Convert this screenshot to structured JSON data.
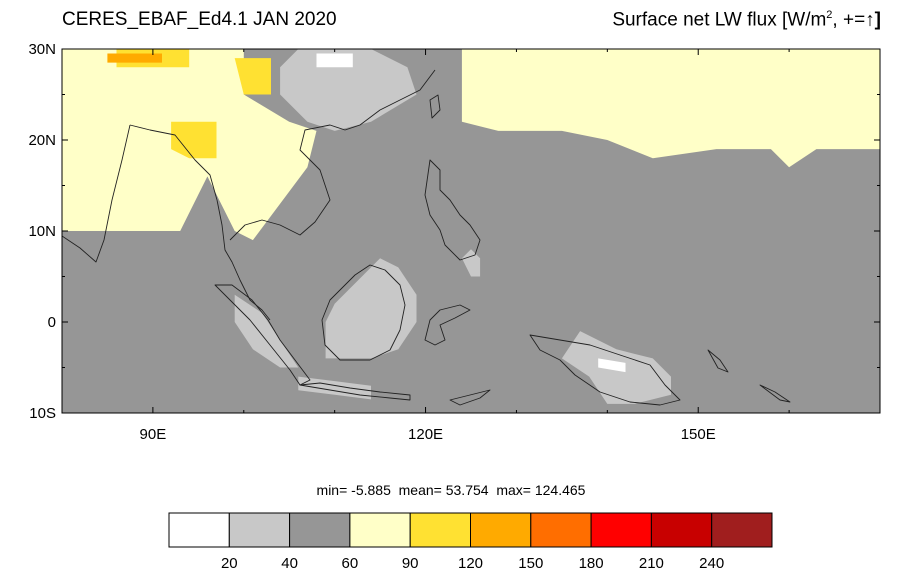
{
  "title_left": "CERES_EBAF_Ed4.1 JAN 2020",
  "title_right": {
    "prefix": "Surface net LW flux [W/m",
    "sup": "2",
    "suffix": ", +=",
    "arrow": "↑",
    "close": "]"
  },
  "stats": {
    "min_label": "min=",
    "min_value": "-5.885",
    "mean_label": "mean=",
    "mean_value": "53.754",
    "max_label": "max=",
    "max_value": "124.465"
  },
  "map": {
    "lon_range": [
      80,
      170
    ],
    "lat_range": [
      -10,
      30
    ],
    "lat_ticks": [
      {
        "value": 30,
        "label": "30N"
      },
      {
        "value": 20,
        "label": "20N"
      },
      {
        "value": 10,
        "label": "10N"
      },
      {
        "value": 0,
        "label": "0"
      },
      {
        "value": -10,
        "label": "10S"
      }
    ],
    "lon_ticks": [
      {
        "value": 90,
        "label": "90E"
      },
      {
        "value": 120,
        "label": "120E"
      },
      {
        "value": 150,
        "label": "150E"
      }
    ],
    "background_class": "40-60"
  },
  "colorbar": {
    "colors": [
      "#ffffff",
      "#c8c8c8",
      "#969696",
      "#ffffc8",
      "#ffe132",
      "#ffaa00",
      "#ff6e00",
      "#ff0000",
      "#c80000",
      "#a01e1e"
    ],
    "labels": [
      "20",
      "40",
      "60",
      "90",
      "120",
      "150",
      "180",
      "210",
      "240"
    ]
  },
  "chart_data": {
    "type": "heatmap",
    "title": "CERES_EBAF_Ed4.1 JAN 2020",
    "variable": "Surface net LW flux [W/m2, +=↑]",
    "xlim": [
      80,
      170
    ],
    "ylim": [
      -10,
      30
    ],
    "levels": [
      20,
      40,
      60,
      90,
      120,
      150,
      180,
      210,
      240
    ],
    "min": -5.885,
    "mean": 53.754,
    "max": 124.465,
    "regions": [
      {
        "class": "60-90",
        "desc": "Indian subcontinent / Indochina / South China",
        "poly": [
          [
            80,
            30
          ],
          [
            100,
            30
          ],
          [
            100,
            25
          ],
          [
            105,
            22
          ],
          [
            108,
            21
          ],
          [
            107,
            17
          ],
          [
            104,
            13
          ],
          [
            101,
            9
          ],
          [
            99,
            10
          ],
          [
            96,
            16
          ],
          [
            93,
            10
          ],
          [
            80,
            10
          ]
        ]
      },
      {
        "class": "60-90",
        "desc": "subtropical western Pacific",
        "poly": [
          [
            124,
            30
          ],
          [
            170,
            30
          ],
          [
            170,
            19
          ],
          [
            163,
            19
          ],
          [
            160,
            17
          ],
          [
            158,
            19
          ],
          [
            152,
            19
          ],
          [
            145,
            18
          ],
          [
            140,
            20
          ],
          [
            135,
            21
          ],
          [
            128,
            21
          ],
          [
            124,
            22
          ]
        ]
      },
      {
        "class": "90-120",
        "desc": "northern Myanmar",
        "poly": [
          [
            92,
            22
          ],
          [
            97,
            22
          ],
          [
            97,
            18
          ],
          [
            94,
            18
          ],
          [
            92,
            19
          ]
        ]
      },
      {
        "class": "90-120",
        "desc": "Yunnan",
        "poly": [
          [
            99,
            29
          ],
          [
            103,
            29
          ],
          [
            103,
            25
          ],
          [
            100,
            25
          ]
        ]
      },
      {
        "class": "90-120",
        "desc": "Tibet edge",
        "poly": [
          [
            86,
            30
          ],
          [
            94,
            30
          ],
          [
            94,
            28
          ],
          [
            86,
            28
          ]
        ]
      },
      {
        "class": "120-150",
        "desc": "Himalaya",
        "poly": [
          [
            85,
            29.5
          ],
          [
            91,
            29.5
          ],
          [
            91,
            28.5
          ],
          [
            85,
            28.5
          ]
        ]
      },
      {
        "class": "20-40",
        "desc": "South China hills",
        "poly": [
          [
            106,
            30
          ],
          [
            114,
            30
          ],
          [
            118,
            28
          ],
          [
            119,
            25
          ],
          [
            114,
            22
          ],
          [
            110,
            21
          ],
          [
            107,
            22
          ],
          [
            104,
            25
          ],
          [
            104,
            28
          ]
        ]
      },
      {
        "class": "20-40",
        "desc": "Borneo",
        "poly": [
          [
            109,
            -4
          ],
          [
            114,
            -4
          ],
          [
            117,
            -3
          ],
          [
            119,
            0
          ],
          [
            119,
            3
          ],
          [
            117,
            6
          ],
          [
            115,
            7
          ],
          [
            113,
            5
          ],
          [
            110,
            2
          ],
          [
            109,
            0
          ]
        ]
      },
      {
        "class": "20-40",
        "desc": "New Guinea highlands",
        "poly": [
          [
            137,
            -1
          ],
          [
            141,
            -3
          ],
          [
            145,
            -4
          ],
          [
            147,
            -6
          ],
          [
            147,
            -8
          ],
          [
            143,
            -9
          ],
          [
            140,
            -9
          ],
          [
            138,
            -6
          ],
          [
            135,
            -4
          ]
        ]
      },
      {
        "class": "20-40",
        "desc": "Sumatra",
        "poly": [
          [
            99,
            3
          ],
          [
            102,
            1
          ],
          [
            104,
            -2
          ],
          [
            106,
            -5
          ],
          [
            104,
            -5
          ],
          [
            101,
            -3
          ],
          [
            99,
            0
          ]
        ]
      },
      {
        "class": "20-40",
        "desc": "Java",
        "poly": [
          [
            106,
            -6
          ],
          [
            110,
            -6.5
          ],
          [
            114,
            -7
          ],
          [
            114,
            -8.5
          ],
          [
            110,
            -8
          ],
          [
            106,
            -7.5
          ]
        ]
      },
      {
        "class": "20-40",
        "desc": "Mindanao",
        "poly": [
          [
            125,
            8
          ],
          [
            126,
            7
          ],
          [
            126,
            5
          ],
          [
            125,
            5
          ],
          [
            124,
            7
          ]
        ]
      },
      {
        "class": "0-20",
        "desc": "Guizhou",
        "poly": [
          [
            108,
            29.5
          ],
          [
            112,
            29.5
          ],
          [
            112,
            28
          ],
          [
            108,
            28
          ]
        ]
      },
      {
        "class": "0-20",
        "desc": "New Guinea central",
        "poly": [
          [
            139,
            -4
          ],
          [
            142,
            -4.5
          ],
          [
            142,
            -5.5
          ],
          [
            139,
            -5
          ]
        ]
      }
    ]
  }
}
